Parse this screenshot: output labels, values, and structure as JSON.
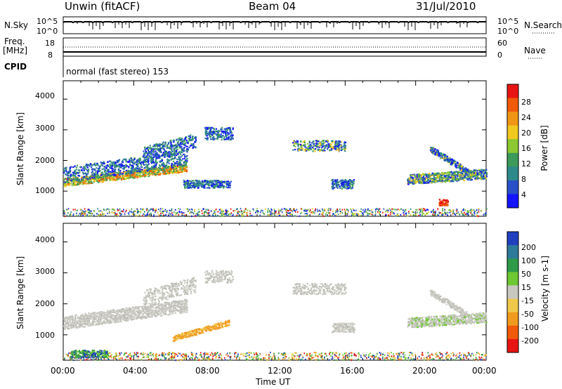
{
  "header": {
    "title": "Unwin (fitACF)",
    "beam": "Beam 04",
    "date": "31/Jul/2010"
  },
  "top_panels": {
    "nsky_label": "N.Sky",
    "nsky_ticks": [
      "10^5",
      "10^0"
    ],
    "nsearch_label": "N.Search",
    "nsearch_ticks": [
      "10^5",
      "10^0"
    ],
    "freq_label": "Freq.",
    "freq_unit": "[MHz]",
    "freq_ticks": [
      "18",
      "8"
    ],
    "nave_label": "Nave",
    "nave_ticks": [
      "60",
      "0"
    ],
    "cpid_label": "CPID",
    "cpid_text": "normal (fast stereo) 153"
  },
  "chart_data": [
    {
      "type": "heatmap",
      "name": "power-panel",
      "ylabel": "Slant Range [km]",
      "ylim": [
        180,
        4600
      ],
      "yticks": [
        "1000",
        "2000",
        "3000",
        "4000"
      ],
      "xlim_hours": [
        0,
        24
      ],
      "colorbar_label": "Power [dB]",
      "colorbar_ticks": [
        "4",
        "8",
        "12",
        "16",
        "20",
        "24",
        "28"
      ],
      "colorbar_colors": [
        "#1414ff",
        "#2850c8",
        "#2e8a8a",
        "#3c9a5a",
        "#8cc832",
        "#f0c81e",
        "#f09614",
        "#f05a0a",
        "#e81414"
      ]
    },
    {
      "type": "heatmap",
      "name": "velocity-panel",
      "ylabel": "Slant Range [km]",
      "ylim": [
        180,
        4600
      ],
      "yticks": [
        "1000",
        "2000",
        "3000",
        "4000"
      ],
      "xlim_hours": [
        0,
        24
      ],
      "xlabel": "Time UT",
      "xticks": [
        "00:00",
        "04:00",
        "08:00",
        "12:00",
        "16:00",
        "20:00",
        "00:00"
      ],
      "colorbar_label": "Velocity [m s-1]",
      "colorbar_ticks": [
        "200",
        "100",
        "50",
        "15",
        "-15",
        "-50",
        "-100",
        "-200"
      ],
      "colorbar_colors": [
        "#2040c0",
        "#2e7a9a",
        "#2e9a4a",
        "#6ec832",
        "#c8c8c0",
        "#f0c84a",
        "#f09a1e",
        "#f05a0a",
        "#e81414"
      ]
    }
  ]
}
